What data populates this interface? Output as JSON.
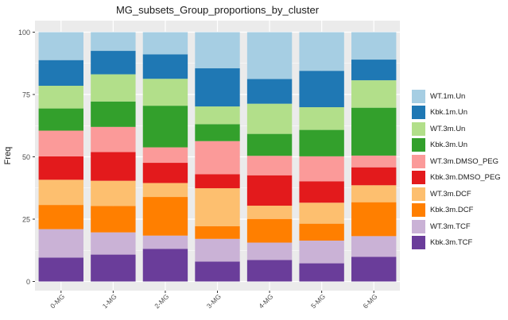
{
  "chart_data": {
    "type": "bar",
    "stacked": true,
    "title": "MG_subsets_Group_proportions_by_cluster",
    "xlabel": "",
    "ylabel": "Freq",
    "ylim": [
      0,
      100
    ],
    "yticks": [
      "0",
      "25",
      "50",
      "75",
      "100"
    ],
    "grid": true,
    "legend_position": "right",
    "categories": [
      "0-MG",
      "1-MG",
      "2-MG",
      "3-MG",
      "4-MG",
      "5-MG",
      "6-MG"
    ],
    "series": [
      {
        "name": "Kbk.3m.TCF",
        "color": "#6a3d9a",
        "values": [
          9.6,
          10.8,
          13.1,
          8.0,
          8.6,
          7.3,
          9.9
        ]
      },
      {
        "name": "WT.3m.TCF",
        "color": "#cab2d6",
        "values": [
          11.4,
          8.9,
          5.3,
          9.1,
          7.0,
          9.1,
          8.3
        ]
      },
      {
        "name": "Kbk.3m.DCF",
        "color": "#ff7f00",
        "values": [
          9.7,
          10.6,
          15.5,
          5.1,
          9.5,
          6.8,
          13.6
        ]
      },
      {
        "name": "WT.3m.DCF",
        "color": "#fdbf6f",
        "values": [
          10.1,
          10.1,
          5.6,
          15.2,
          5.3,
          8.4,
          6.8
        ]
      },
      {
        "name": "Kbk.3m.DMSO_PEG",
        "color": "#e31a1c",
        "values": [
          9.4,
          11.5,
          8.1,
          5.6,
          12.2,
          8.6,
          7.2
        ]
      },
      {
        "name": "WT.3m.DMSO_PEG",
        "color": "#fb9a99",
        "values": [
          10.3,
          10.1,
          6.2,
          13.3,
          7.8,
          10.0,
          4.7
        ]
      },
      {
        "name": "Kbk.3m.Un",
        "color": "#33a02c",
        "values": [
          8.9,
          10.2,
          16.7,
          6.8,
          8.8,
          10.6,
          19.2
        ]
      },
      {
        "name": "WT.3m.Un",
        "color": "#b2df8a",
        "values": [
          9.1,
          10.9,
          10.8,
          7.1,
          12.1,
          9.1,
          11.0
        ]
      },
      {
        "name": "Kbk.1m.Un",
        "color": "#1f78b4",
        "values": [
          10.3,
          9.4,
          9.8,
          15.3,
          9.9,
          14.6,
          8.3
        ]
      },
      {
        "name": "WT.1m.Un",
        "color": "#a6cee3",
        "values": [
          11.2,
          7.5,
          8.9,
          14.5,
          18.8,
          15.5,
          11.0
        ]
      }
    ],
    "legend_order": [
      "WT.1m.Un",
      "Kbk.1m.Un",
      "WT.3m.Un",
      "Kbk.3m.Un",
      "WT.3m.DMSO_PEG",
      "Kbk.3m.DMSO_PEG",
      "WT.3m.DCF",
      "Kbk.3m.DCF",
      "WT.3m.TCF",
      "Kbk.3m.TCF"
    ],
    "panel_background": "#ebebeb",
    "gridline_color": "#ffffff"
  }
}
